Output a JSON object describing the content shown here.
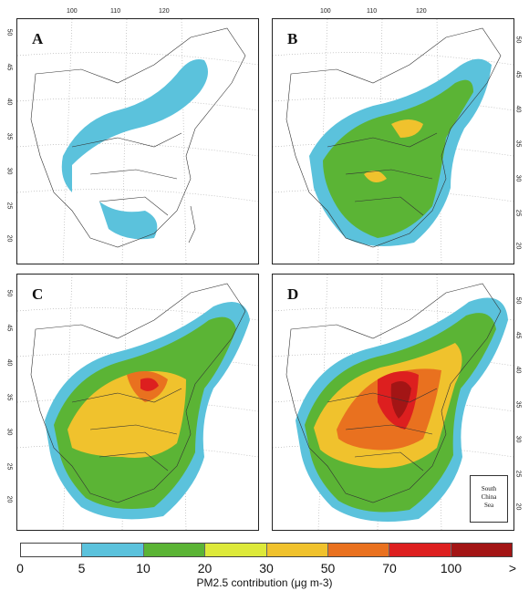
{
  "panels": [
    {
      "letter": "A",
      "level": 1
    },
    {
      "letter": "B",
      "level": 2
    },
    {
      "letter": "C",
      "level": 3
    },
    {
      "letter": "D",
      "level": 4
    }
  ],
  "lon_labels": [
    "100",
    "110",
    "120"
  ],
  "lat_labels": [
    "50",
    "45",
    "40",
    "35",
    "30",
    "25",
    "20"
  ],
  "inset_text": [
    "South",
    "China",
    "Sea"
  ],
  "colorbar": {
    "ticks": [
      "0",
      "5",
      "10",
      "20",
      "30",
      "50",
      "70",
      "100",
      ">"
    ],
    "colors": [
      "#ffffff",
      "#5bc2dc",
      "#5bb435",
      "#dde93a",
      "#f0c22d",
      "#e9711f",
      "#dd1f1f",
      "#a31515",
      "#6e321d"
    ],
    "label": "PM2.5 contribution (μg m-3)"
  }
}
